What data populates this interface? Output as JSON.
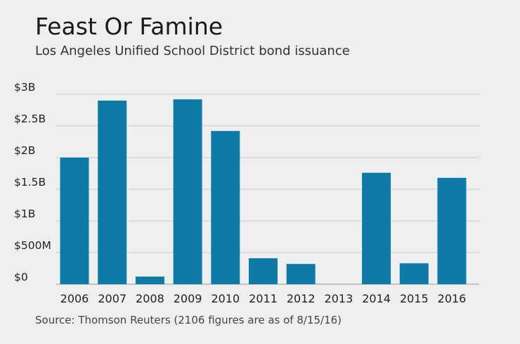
{
  "chart_data": {
    "type": "bar",
    "title": "Feast Or Famine",
    "subtitle": "Los Angeles Unified School District bond issuance",
    "source": "Source: Thomson Reuters (2106 figures are as of 8/15/16)",
    "categories": [
      "2006",
      "2007",
      "2008",
      "2009",
      "2010",
      "2011",
      "2012",
      "2013",
      "2014",
      "2015",
      "2016"
    ],
    "values": [
      2.0,
      2.9,
      0.12,
      2.92,
      2.42,
      0.41,
      0.32,
      0,
      1.76,
      0.33,
      1.68
    ],
    "value_unit": "billions of dollars",
    "ylim": [
      0,
      3
    ],
    "yticks": [
      {
        "value": 0,
        "label": "$0"
      },
      {
        "value": 0.5,
        "label": "$500M"
      },
      {
        "value": 1.0,
        "label": "$1B"
      },
      {
        "value": 1.5,
        "label": "$1.5B"
      },
      {
        "value": 2.0,
        "label": "$2B"
      },
      {
        "value": 2.5,
        "label": "$2.5B"
      },
      {
        "value": 3.0,
        "label": "$3B"
      }
    ],
    "grid": true,
    "bar_color": "#0e7aa6"
  }
}
